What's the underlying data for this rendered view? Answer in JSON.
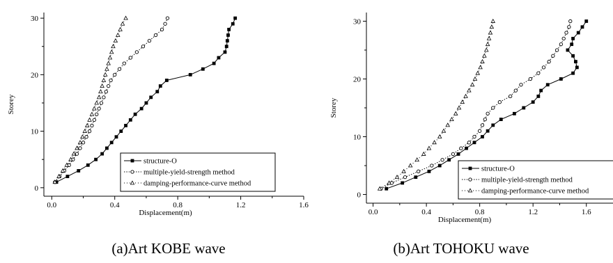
{
  "chart_data": [
    {
      "type": "line",
      "caption": "(a)Art KOBE wave",
      "xlabel": "Displacement(m)",
      "ylabel": "Storey",
      "xlim": [
        -0.05,
        1.6
      ],
      "ylim": [
        -1.5,
        31
      ],
      "xticks": [
        0.0,
        0.4,
        0.8,
        1.2,
        1.6
      ],
      "xtick_labels": [
        "0.0",
        "0.4",
        "0.8",
        "1.2",
        "1.6"
      ],
      "yticks": [
        0,
        10,
        20,
        30
      ],
      "ytick_labels": [
        "0",
        "10",
        "20",
        "30"
      ],
      "legend_position": "bottom-right",
      "series": [
        {
          "name": "structure-O",
          "marker": "filled-square",
          "line": "solid",
          "y": [
            1,
            2,
            3,
            4,
            5,
            6,
            7,
            8,
            9,
            10,
            11,
            12,
            13,
            14,
            15,
            16,
            17,
            18,
            19,
            20,
            21,
            22,
            23,
            24,
            25,
            26,
            27,
            28,
            29,
            30
          ],
          "x": [
            0.03,
            0.1,
            0.17,
            0.23,
            0.28,
            0.32,
            0.35,
            0.38,
            0.41,
            0.44,
            0.47,
            0.5,
            0.53,
            0.57,
            0.6,
            0.63,
            0.67,
            0.69,
            0.73,
            0.88,
            0.96,
            1.03,
            1.06,
            1.1,
            1.11,
            1.115,
            1.12,
            1.125,
            1.15,
            1.165
          ]
        },
        {
          "name": "multiple-yield-strength method",
          "marker": "open-circle",
          "line": "dotted",
          "y": [
            1,
            2,
            3,
            4,
            5,
            6,
            7,
            8,
            9,
            10,
            11,
            12,
            13,
            14,
            15,
            16,
            17,
            18,
            19,
            20,
            21,
            22,
            23,
            24,
            25,
            26,
            27,
            28,
            29,
            30
          ],
          "x": [
            0.02,
            0.05,
            0.08,
            0.11,
            0.135,
            0.16,
            0.18,
            0.2,
            0.22,
            0.24,
            0.255,
            0.27,
            0.285,
            0.3,
            0.315,
            0.33,
            0.345,
            0.36,
            0.375,
            0.4,
            0.43,
            0.46,
            0.5,
            0.54,
            0.58,
            0.62,
            0.66,
            0.7,
            0.72,
            0.735
          ]
        },
        {
          "name": "damping-performance-curve method",
          "marker": "open-triangle",
          "line": "dotted",
          "y": [
            1,
            2,
            3,
            4,
            5,
            6,
            7,
            8,
            9,
            10,
            11,
            12,
            13,
            14,
            15,
            16,
            17,
            18,
            19,
            20,
            21,
            22,
            23,
            24,
            25,
            26,
            27,
            28,
            29,
            30
          ],
          "x": [
            0.02,
            0.045,
            0.07,
            0.095,
            0.12,
            0.14,
            0.16,
            0.18,
            0.195,
            0.21,
            0.225,
            0.24,
            0.255,
            0.27,
            0.285,
            0.3,
            0.31,
            0.32,
            0.33,
            0.34,
            0.35,
            0.36,
            0.37,
            0.38,
            0.39,
            0.405,
            0.42,
            0.435,
            0.45,
            0.47
          ]
        }
      ]
    },
    {
      "type": "line",
      "caption": "(b)Art TOHOKU wave",
      "xlabel": "Displacement(m)",
      "ylabel": "Storey",
      "xlim": [
        -0.05,
        1.8
      ],
      "ylim": [
        -1.5,
        31.5
      ],
      "xticks": [
        0.0,
        0.4,
        0.8,
        1.2,
        1.6
      ],
      "xtick_labels": [
        "0.0",
        "0.4",
        "0.8",
        "1.2",
        "1.6"
      ],
      "yticks": [
        0,
        10,
        20,
        30
      ],
      "ytick_labels": [
        "0",
        "10",
        "20",
        "30"
      ],
      "legend_position": "bottom-right",
      "series": [
        {
          "name": "structure-O",
          "marker": "filled-square",
          "line": "solid",
          "y": [
            1,
            2,
            3,
            4,
            5,
            6,
            7,
            8,
            9,
            10,
            11,
            12,
            13,
            14,
            15,
            16,
            17,
            18,
            19,
            20,
            21,
            22,
            23,
            24,
            25,
            26,
            27,
            28,
            29,
            30
          ],
          "x": [
            0.1,
            0.22,
            0.32,
            0.42,
            0.5,
            0.57,
            0.64,
            0.7,
            0.76,
            0.82,
            0.86,
            0.9,
            0.96,
            1.06,
            1.13,
            1.2,
            1.24,
            1.26,
            1.31,
            1.41,
            1.5,
            1.53,
            1.52,
            1.5,
            1.46,
            1.49,
            1.5,
            1.54,
            1.57,
            1.6
          ]
        },
        {
          "name": "multiple-yield-strength method",
          "marker": "open-circle",
          "line": "dotted",
          "y": [
            1,
            2,
            3,
            4,
            5,
            6,
            7,
            8,
            9,
            10,
            11,
            12,
            13,
            14,
            15,
            16,
            17,
            18,
            19,
            20,
            21,
            22,
            23,
            24,
            25,
            26,
            27,
            28,
            29,
            30
          ],
          "x": [
            0.06,
            0.14,
            0.24,
            0.34,
            0.44,
            0.52,
            0.6,
            0.66,
            0.72,
            0.76,
            0.8,
            0.82,
            0.84,
            0.86,
            0.9,
            0.95,
            1.03,
            1.07,
            1.11,
            1.18,
            1.24,
            1.28,
            1.32,
            1.35,
            1.38,
            1.41,
            1.43,
            1.45,
            1.47,
            1.48
          ]
        },
        {
          "name": "damping-performance-curve method",
          "marker": "open-triangle",
          "line": "dotted",
          "y": [
            1,
            2,
            3,
            4,
            5,
            6,
            7,
            8,
            9,
            10,
            11,
            12,
            13,
            14,
            15,
            16,
            17,
            18,
            19,
            20,
            21,
            22,
            23,
            24,
            25,
            26,
            27,
            28,
            29,
            30
          ],
          "x": [
            0.05,
            0.12,
            0.18,
            0.23,
            0.28,
            0.33,
            0.38,
            0.42,
            0.46,
            0.5,
            0.53,
            0.56,
            0.59,
            0.62,
            0.645,
            0.67,
            0.695,
            0.72,
            0.745,
            0.765,
            0.785,
            0.805,
            0.82,
            0.835,
            0.85,
            0.86,
            0.87,
            0.88,
            0.89,
            0.9
          ]
        }
      ]
    }
  ]
}
